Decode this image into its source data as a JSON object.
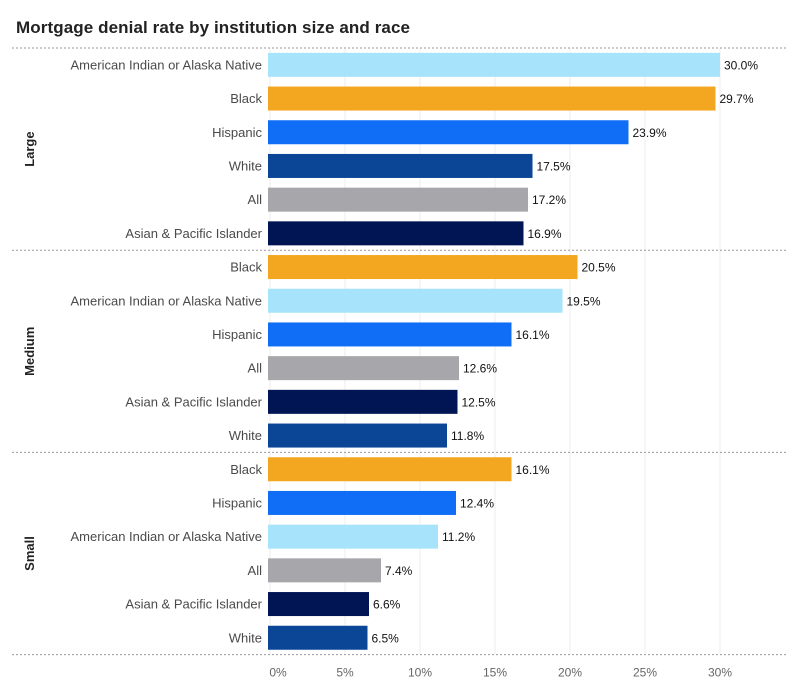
{
  "title": "Mortgage denial rate by institution size and race",
  "colors": {
    "American Indian or Alaska Native": "#a7e3fb",
    "Black": "#f3a61f",
    "Hispanic": "#0f6ef5",
    "White": "#0b4596",
    "All": "#a7a7ab",
    "Asian & Pacific Islander": "#011554"
  },
  "chart_data": {
    "type": "bar",
    "orientation": "horizontal",
    "xlim": [
      0,
      35
    ],
    "x_ticks": [
      "0%",
      "5%",
      "10%",
      "15%",
      "20%",
      "25%",
      "30%"
    ],
    "tick_values": [
      0,
      5,
      10,
      15,
      20,
      25,
      30
    ],
    "groups": [
      {
        "name": "Large",
        "bars": [
          {
            "category": "American Indian or Alaska Native",
            "value": 30.0,
            "label": "30.0%"
          },
          {
            "category": "Black",
            "value": 29.7,
            "label": "29.7%"
          },
          {
            "category": "Hispanic",
            "value": 23.9,
            "label": "23.9%"
          },
          {
            "category": "White",
            "value": 17.5,
            "label": "17.5%"
          },
          {
            "category": "All",
            "value": 17.2,
            "label": "17.2%"
          },
          {
            "category": "Asian & Pacific Islander",
            "value": 16.9,
            "label": "16.9%"
          }
        ]
      },
      {
        "name": "Medium",
        "bars": [
          {
            "category": "Black",
            "value": 20.5,
            "label": "20.5%"
          },
          {
            "category": "American Indian or Alaska Native",
            "value": 19.5,
            "label": "19.5%"
          },
          {
            "category": "Hispanic",
            "value": 16.1,
            "label": "16.1%"
          },
          {
            "category": "All",
            "value": 12.6,
            "label": "12.6%"
          },
          {
            "category": "Asian & Pacific Islander",
            "value": 12.5,
            "label": "12.5%"
          },
          {
            "category": "White",
            "value": 11.8,
            "label": "11.8%"
          }
        ]
      },
      {
        "name": "Small",
        "bars": [
          {
            "category": "Black",
            "value": 16.1,
            "label": "16.1%"
          },
          {
            "category": "Hispanic",
            "value": 12.4,
            "label": "12.4%"
          },
          {
            "category": "American Indian or Alaska Native",
            "value": 11.2,
            "label": "11.2%"
          },
          {
            "category": "All",
            "value": 7.4,
            "label": "7.4%"
          },
          {
            "category": "Asian & Pacific Islander",
            "value": 6.6,
            "label": "6.6%"
          },
          {
            "category": "White",
            "value": 6.5,
            "label": "6.5%"
          }
        ]
      }
    ]
  }
}
